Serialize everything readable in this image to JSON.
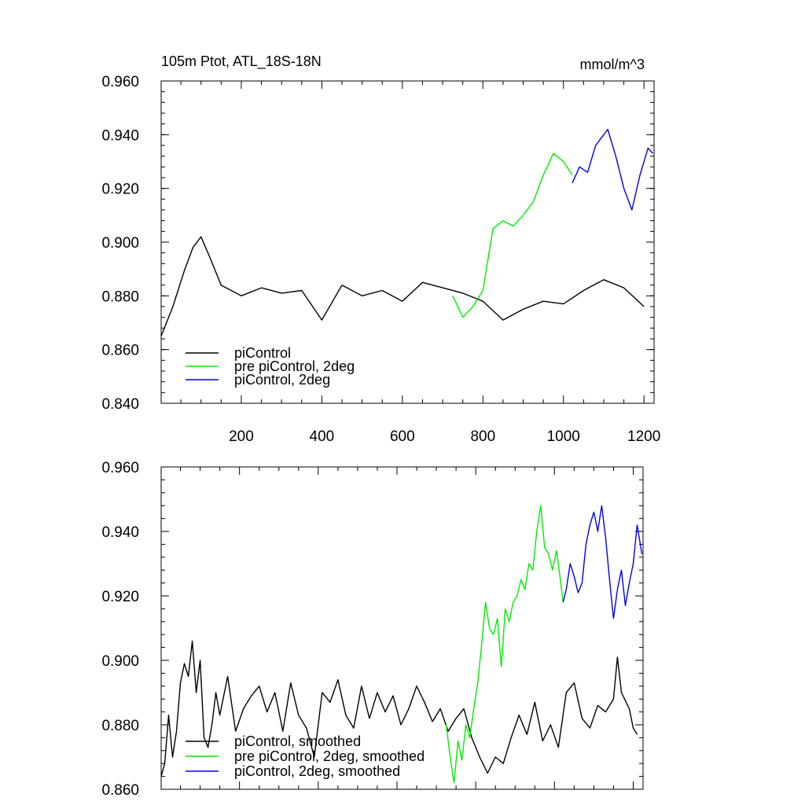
{
  "chart_data": [
    {
      "type": "line",
      "title_left": "105m Ptot, ATL_18S-18N",
      "title_right": "mmol/m^3",
      "xlim": [
        1,
        1225
      ],
      "ylim": [
        0.84,
        0.96
      ],
      "xticks": [
        200,
        400,
        600,
        800,
        1000,
        1200
      ],
      "xtick_labels": [
        "200",
        "400",
        "600",
        "800",
        "1000",
        "1200"
      ],
      "yticks": [
        0.84,
        0.86,
        0.88,
        0.9,
        0.92,
        0.94,
        0.96
      ],
      "ytick_labels": [
        "0.840",
        "0.860",
        "0.880",
        "0.900",
        "0.920",
        "0.940",
        "0.960"
      ],
      "legend_position": "bottom-left",
      "series": [
        {
          "name": "piControl",
          "color": "#000000",
          "x": [
            1,
            30,
            60,
            80,
            100,
            120,
            150,
            200,
            250,
            300,
            350,
            400,
            450,
            500,
            550,
            600,
            650,
            700,
            750,
            800,
            850,
            900,
            950,
            1000,
            1050,
            1100,
            1150,
            1200
          ],
          "values": [
            0.865,
            0.876,
            0.89,
            0.898,
            0.902,
            0.895,
            0.884,
            0.88,
            0.883,
            0.881,
            0.882,
            0.871,
            0.884,
            0.88,
            0.882,
            0.878,
            0.885,
            0.883,
            0.881,
            0.878,
            0.871,
            0.875,
            0.878,
            0.877,
            0.882,
            0.886,
            0.883,
            0.876
          ]
        },
        {
          "name": "pre piControl, 2deg",
          "color": "#00ee00",
          "x": [
            725,
            750,
            775,
            800,
            825,
            850,
            875,
            900,
            925,
            950,
            975,
            1000,
            1022
          ],
          "values": [
            0.88,
            0.872,
            0.876,
            0.882,
            0.905,
            0.908,
            0.906,
            0.91,
            0.915,
            0.925,
            0.933,
            0.93,
            0.925
          ]
        },
        {
          "name": "piControl, 2deg",
          "color": "#0000ee",
          "x": [
            1022,
            1040,
            1060,
            1080,
            1100,
            1110,
            1130,
            1150,
            1170,
            1190,
            1210,
            1222
          ],
          "values": [
            0.922,
            0.928,
            0.926,
            0.936,
            0.94,
            0.942,
            0.932,
            0.92,
            0.912,
            0.925,
            0.935,
            0.933
          ]
        }
      ]
    },
    {
      "type": "line",
      "xlim": [
        1,
        1225
      ],
      "ylim": [
        0.86,
        0.96
      ],
      "xticks": [
        200,
        400,
        600,
        800,
        1000,
        1200
      ],
      "yticks": [
        0.86,
        0.88,
        0.9,
        0.92,
        0.94,
        0.96
      ],
      "ytick_labels": [
        "0.860",
        "0.880",
        "0.900",
        "0.920",
        "0.940",
        "0.960"
      ],
      "legend_position": "bottom-left",
      "series": [
        {
          "name": "piControl, smoothed",
          "color": "#000000",
          "x": [
            1,
            10,
            20,
            30,
            40,
            50,
            60,
            70,
            80,
            90,
            100,
            110,
            120,
            130,
            140,
            150,
            170,
            190,
            210,
            230,
            250,
            270,
            290,
            310,
            330,
            350,
            370,
            390,
            410,
            430,
            450,
            470,
            490,
            510,
            530,
            550,
            570,
            590,
            610,
            630,
            650,
            670,
            690,
            710,
            730,
            750,
            770,
            790,
            810,
            830,
            850,
            870,
            890,
            910,
            930,
            950,
            970,
            990,
            1010,
            1030,
            1050,
            1070,
            1090,
            1110,
            1130,
            1150,
            1160,
            1170,
            1190,
            1200,
            1210
          ],
          "values": [
            0.864,
            0.868,
            0.883,
            0.87,
            0.878,
            0.893,
            0.899,
            0.895,
            0.906,
            0.89,
            0.9,
            0.876,
            0.873,
            0.88,
            0.89,
            0.883,
            0.895,
            0.878,
            0.885,
            0.889,
            0.892,
            0.884,
            0.89,
            0.878,
            0.893,
            0.883,
            0.879,
            0.87,
            0.89,
            0.887,
            0.894,
            0.883,
            0.879,
            0.892,
            0.882,
            0.89,
            0.884,
            0.889,
            0.88,
            0.885,
            0.892,
            0.887,
            0.881,
            0.885,
            0.878,
            0.882,
            0.885,
            0.876,
            0.87,
            0.865,
            0.87,
            0.868,
            0.876,
            0.883,
            0.877,
            0.887,
            0.875,
            0.88,
            0.873,
            0.89,
            0.893,
            0.882,
            0.879,
            0.886,
            0.884,
            0.888,
            0.901,
            0.89,
            0.885,
            0.879,
            0.877
          ]
        },
        {
          "name": "pre piControl, 2deg, smoothed",
          "color": "#00ee00",
          "x": [
            725,
            735,
            745,
            755,
            765,
            775,
            785,
            795,
            805,
            815,
            825,
            835,
            845,
            855,
            865,
            875,
            885,
            895,
            905,
            915,
            925,
            935,
            945,
            955,
            965,
            975,
            985,
            995,
            1005,
            1015,
            1022
          ],
          "values": [
            0.88,
            0.87,
            0.862,
            0.875,
            0.869,
            0.88,
            0.876,
            0.885,
            0.893,
            0.905,
            0.918,
            0.91,
            0.908,
            0.913,
            0.898,
            0.916,
            0.912,
            0.918,
            0.92,
            0.925,
            0.922,
            0.93,
            0.928,
            0.94,
            0.948,
            0.935,
            0.933,
            0.928,
            0.934,
            0.925,
            0.918
          ]
        },
        {
          "name": "piControl, 2deg, smoothed",
          "color": "#0000ee",
          "x": [
            1022,
            1030,
            1040,
            1050,
            1060,
            1070,
            1080,
            1090,
            1100,
            1110,
            1120,
            1130,
            1140,
            1150,
            1160,
            1170,
            1180,
            1190,
            1200,
            1210,
            1222
          ],
          "values": [
            0.918,
            0.922,
            0.93,
            0.926,
            0.921,
            0.924,
            0.936,
            0.942,
            0.946,
            0.94,
            0.948,
            0.938,
            0.925,
            0.913,
            0.922,
            0.928,
            0.917,
            0.924,
            0.93,
            0.942,
            0.933
          ]
        }
      ]
    }
  ]
}
